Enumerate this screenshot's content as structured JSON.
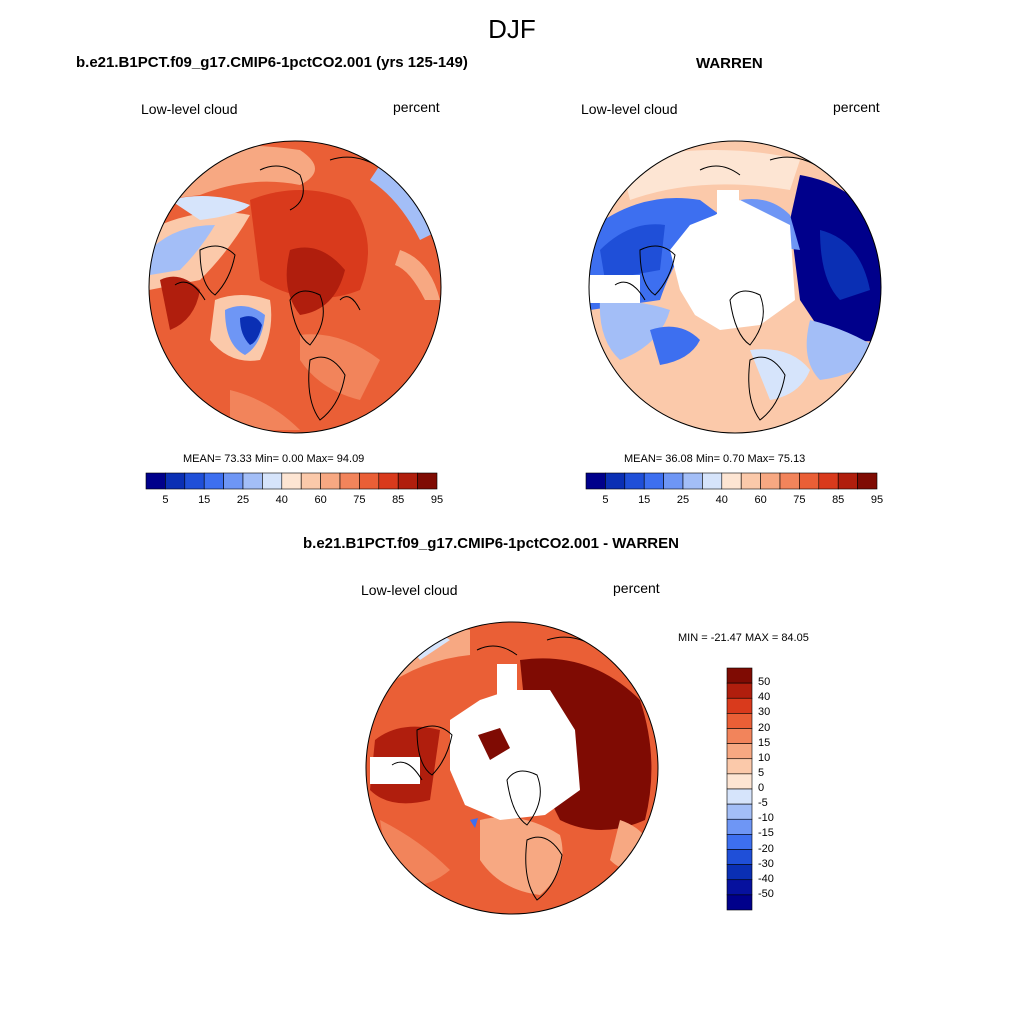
{
  "figure_title": "DJF",
  "panels": [
    {
      "title": "b.e21.B1PCT.f09_g17.CMIP6-1pctCO2.001 (yrs 125-149)",
      "variable_label": "Low-level cloud",
      "units_label": "percent",
      "stats": "MEAN=  73.33  Min=   0.00  Max=  94.09",
      "colorbar_ticks": [
        "5",
        "15",
        "25",
        "40",
        "60",
        "75",
        "85",
        "95"
      ],
      "colorbar_colors": [
        "#00008b",
        "#0a2fb4",
        "#1f4fd8",
        "#3d6ff0",
        "#6e96f5",
        "#a3bef7",
        "#d6e4fb",
        "#fde5d3",
        "#fbc9aa",
        "#f7a882",
        "#f2845b",
        "#ea5f36",
        "#d93a1c",
        "#b01e0d",
        "#7f0b03"
      ]
    },
    {
      "title": "WARREN",
      "variable_label": "Low-level cloud",
      "units_label": "percent",
      "stats": "MEAN=  36.08  Min=   0.70  Max=  75.13",
      "colorbar_ticks": [
        "5",
        "15",
        "25",
        "40",
        "60",
        "75",
        "85",
        "95"
      ],
      "colorbar_colors": [
        "#00008b",
        "#0a2fb4",
        "#1f4fd8",
        "#3d6ff0",
        "#6e96f5",
        "#a3bef7",
        "#d6e4fb",
        "#fde5d3",
        "#fbc9aa",
        "#f7a882",
        "#f2845b",
        "#ea5f36",
        "#d93a1c",
        "#b01e0d",
        "#7f0b03"
      ]
    },
    {
      "title": "b.e21.B1PCT.f09_g17.CMIP6-1pctCO2.001 - WARREN",
      "variable_label": "Low-level cloud",
      "units_label": "percent",
      "stats": "MIN = -21.47 MAX =  84.05",
      "colorbar_ticks": [
        "50",
        "40",
        "30",
        "20",
        "15",
        "10",
        "5",
        "0",
        "-5",
        "-10",
        "-15",
        "-20",
        "-30",
        "-40",
        "-50"
      ],
      "colorbar_colors": [
        "#7f0b03",
        "#b01e0d",
        "#d93a1c",
        "#ea5f36",
        "#f2845b",
        "#f7a882",
        "#fbc9aa",
        "#fde5d3",
        "#d6e4fb",
        "#a3bef7",
        "#6e96f5",
        "#3d6ff0",
        "#1f4fd8",
        "#0a2fb4",
        "#06119e",
        "#00008b"
      ]
    }
  ]
}
